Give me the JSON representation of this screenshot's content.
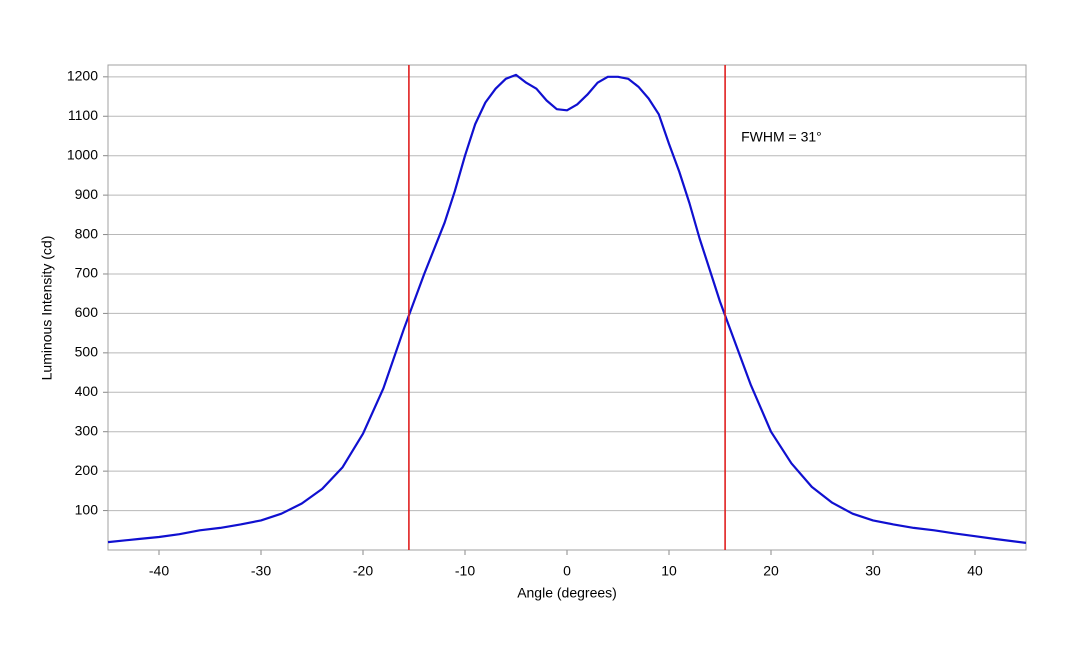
{
  "chart_data": {
    "type": "line",
    "x_label": "Angle (degrees)",
    "y_label": "Luminous Intensity (cd)",
    "annotation": "FWHM = 31°",
    "x": [
      -45,
      -42,
      -40,
      -38,
      -36,
      -34,
      -32,
      -30,
      -28,
      -26,
      -24,
      -22,
      -20,
      -18,
      -16,
      -14,
      -12,
      -11,
      -10,
      -9,
      -8,
      -7,
      -6,
      -5,
      -4,
      -3,
      -2,
      -1,
      0,
      1,
      2,
      3,
      4,
      5,
      6,
      7,
      8,
      9,
      10,
      11,
      12,
      13,
      14,
      15,
      16,
      18,
      20,
      22,
      24,
      26,
      28,
      30,
      32,
      34,
      36,
      38,
      40,
      42,
      45
    ],
    "values": [
      20,
      28,
      33,
      40,
      50,
      56,
      65,
      75,
      92,
      118,
      155,
      210,
      295,
      410,
      560,
      700,
      830,
      910,
      1000,
      1080,
      1135,
      1170,
      1195,
      1205,
      1185,
      1170,
      1140,
      1118,
      1115,
      1130,
      1155,
      1185,
      1200,
      1200,
      1195,
      1175,
      1145,
      1105,
      1030,
      960,
      880,
      790,
      710,
      630,
      560,
      420,
      300,
      220,
      160,
      120,
      92,
      75,
      65,
      56,
      50,
      42,
      35,
      28,
      18
    ],
    "color": "#1010d0",
    "vlines": [
      -15.5,
      15.5
    ],
    "vline_color": "#e02020",
    "xlim": [
      -45,
      45
    ],
    "xticks": [
      -40,
      -30,
      -20,
      -10,
      0,
      10,
      20,
      30,
      40
    ],
    "ylim": [
      0,
      1230
    ],
    "yticks": [
      100,
      200,
      300,
      400,
      500,
      600,
      700,
      800,
      900,
      1000,
      1100,
      1200
    ],
    "grid": true
  }
}
